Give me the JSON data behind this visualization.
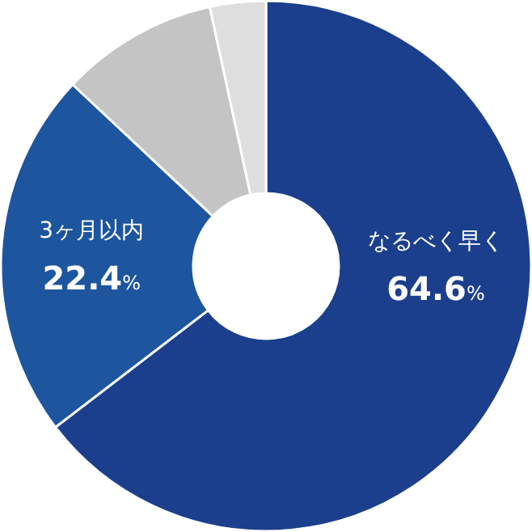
{
  "chart_data": {
    "type": "donut",
    "categories": [
      "なるべく早く",
      "3ヶ月以内",
      null,
      null
    ],
    "values": [
      64.6,
      22.4,
      9.6,
      3.4
    ],
    "colors": [
      "#1b3f8c",
      "#1d559e",
      "#c4c4c4",
      "#dedede"
    ],
    "value_labels": [
      "64.6%",
      "22.4%",
      null,
      null
    ]
  }
}
